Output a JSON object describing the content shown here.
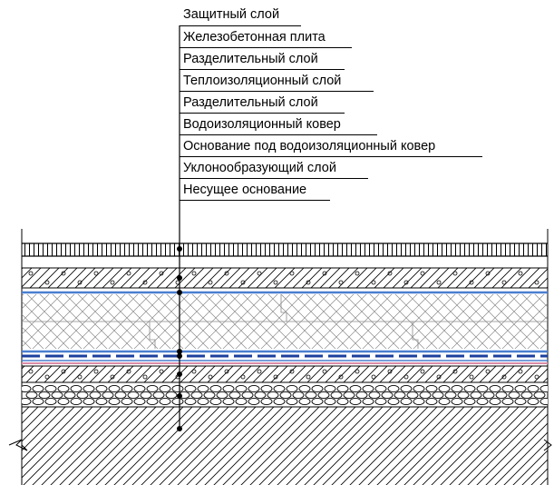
{
  "layers": [
    {
      "label": "Защитный слой",
      "pattern": "hatch-vertical"
    },
    {
      "label": "Железобетонная плита",
      "pattern": "concrete"
    },
    {
      "label": "Разделительный слой",
      "pattern": "membrane"
    },
    {
      "label": "Теплоизоляционный слой",
      "pattern": "insulation"
    },
    {
      "label": "Разделительный слой",
      "pattern": "membrane"
    },
    {
      "label": "Водоизоляционный ковер",
      "pattern": "waterproofing"
    },
    {
      "label": "Основание под водоизоляционный ковер",
      "pattern": "screed"
    },
    {
      "label": "Уклонообразующий слой",
      "pattern": "gravel"
    },
    {
      "label": "Несущее основание",
      "pattern": "hatch-diagonal"
    }
  ],
  "colors": {
    "line": "#000000",
    "membrane": "#4a7fd0",
    "waterproofing": "#1c3f9e",
    "pink": "#d98ca8",
    "grid": "#8a8a8a"
  }
}
